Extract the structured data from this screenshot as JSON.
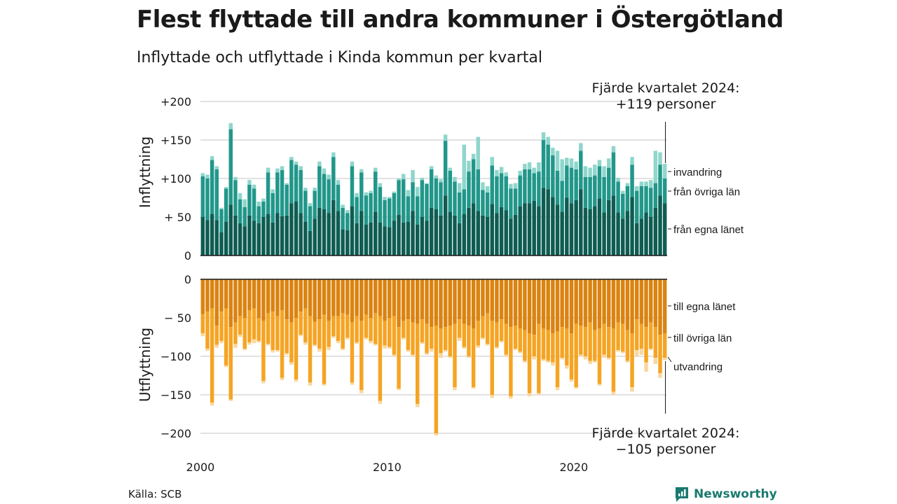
{
  "title": "Flest flyttade till andra kommuner i Östergötland",
  "subtitle": "Inflyttade och utflyttade i Kinda kommun per kvartal",
  "source": "Källa: SCB",
  "logo_text": "Newsworthy",
  "colors": {
    "in_egna": "#0e5c52",
    "in_ovriga": "#21978a",
    "in_invandring": "#8fd6cc",
    "ut_egna": "#db8310",
    "ut_ovriga": "#f5a423",
    "ut_utvandring": "#f9d7a0",
    "logo": "#1a7a70"
  },
  "chart_data": {
    "type": "bar",
    "stacked": true,
    "x_tick_labels": [
      "2000",
      "2010",
      "2020"
    ],
    "x_range": [
      "2000 Q1",
      "2024 Q4"
    ],
    "grid": true,
    "top_panel": {
      "ylabel": "Inflyttning",
      "y_tick_labels": [
        "0",
        "+ 50",
        "+100",
        "+150",
        "+200"
      ],
      "ylim": [
        0,
        200
      ],
      "series_labels": [
        "från egna länet",
        "från övriga län",
        "invandring"
      ],
      "annotation_line1": "Fjärde kvartalet 2024:",
      "annotation_line2": "+119 personer",
      "egna": [
        50,
        46,
        54,
        46,
        30,
        44,
        66,
        52,
        42,
        38,
        52,
        45,
        42,
        50,
        54,
        43,
        55,
        51,
        52,
        68,
        70,
        55,
        44,
        32,
        48,
        62,
        60,
        55,
        72,
        58,
        34,
        33,
        64,
        42,
        58,
        40,
        43,
        57,
        43,
        38,
        37,
        45,
        53,
        43,
        44,
        58,
        40,
        50,
        45,
        62,
        60,
        52,
        78,
        57,
        52,
        42,
        54,
        62,
        68,
        58,
        52,
        50,
        67,
        55,
        63,
        59,
        48,
        53,
        64,
        68,
        68,
        71,
        64,
        88,
        86,
        76,
        66,
        57,
        75,
        68,
        72,
        86,
        62,
        60,
        64,
        74,
        56,
        72,
        78,
        56,
        48,
        58,
        76,
        42,
        48,
        56,
        50,
        62,
        78,
        68
      ],
      "ovriga": [
        53,
        54,
        70,
        66,
        30,
        43,
        98,
        46,
        31,
        25,
        40,
        42,
        22,
        20,
        54,
        38,
        53,
        60,
        40,
        56,
        48,
        56,
        40,
        32,
        36,
        54,
        46,
        44,
        56,
        34,
        28,
        22,
        52,
        34,
        50,
        38,
        38,
        52,
        46,
        34,
        37,
        36,
        45,
        56,
        33,
        37,
        37,
        48,
        48,
        50,
        40,
        43,
        71,
        53,
        44,
        40,
        32,
        47,
        57,
        54,
        33,
        32,
        50,
        48,
        44,
        44,
        39,
        34,
        40,
        44,
        44,
        36,
        45,
        62,
        58,
        54,
        44,
        40,
        42,
        46,
        40,
        50,
        40,
        42,
        40,
        42,
        46,
        42,
        56,
        40,
        32,
        32,
        42,
        42,
        42,
        34,
        38,
        32,
        40,
        32
      ],
      "invandring": [
        4,
        5,
        5,
        4,
        2,
        2,
        8,
        4,
        8,
        10,
        6,
        5,
        6,
        4,
        6,
        5,
        5,
        5,
        2,
        4,
        4,
        5,
        4,
        4,
        4,
        6,
        7,
        6,
        6,
        6,
        4,
        4,
        6,
        5,
        4,
        4,
        3,
        5,
        5,
        4,
        2,
        2,
        2,
        7,
        8,
        16,
        12,
        3,
        1,
        4,
        4,
        4,
        8,
        4,
        6,
        12,
        58,
        14,
        7,
        42,
        10,
        8,
        11,
        8,
        8,
        5,
        6,
        7,
        6,
        7,
        9,
        7,
        12,
        10,
        10,
        10,
        26,
        28,
        10,
        12,
        10,
        10,
        14,
        12,
        14,
        8,
        14,
        12,
        8,
        5,
        4,
        4,
        10,
        6,
        6,
        6,
        10,
        42,
        16,
        19
      ]
    },
    "bottom_panel": {
      "ylabel": "Utflyttning",
      "y_tick_labels": [
        "0",
        "− 50",
        "−100",
        "−150",
        "−200"
      ],
      "ylim": [
        -200,
        0
      ],
      "series_labels": [
        "till egna länet",
        "till övriga län",
        "utvandring"
      ],
      "annotation_line1": "Fjärde kvartalet 2024:",
      "annotation_line2": "−105 personer",
      "egna": [
        45,
        42,
        38,
        60,
        42,
        38,
        62,
        56,
        48,
        50,
        40,
        38,
        50,
        54,
        44,
        42,
        48,
        40,
        52,
        56,
        50,
        42,
        38,
        48,
        55,
        52,
        46,
        54,
        48,
        48,
        44,
        46,
        56,
        48,
        54,
        46,
        50,
        44,
        48,
        54,
        50,
        48,
        62,
        54,
        52,
        56,
        58,
        52,
        58,
        62,
        60,
        64,
        62,
        60,
        58,
        52,
        58,
        60,
        64,
        54,
        48,
        44,
        54,
        56,
        52,
        58,
        62,
        60,
        64,
        66,
        70,
        72,
        58,
        64,
        66,
        70,
        68,
        62,
        64,
        70,
        58,
        60,
        62,
        56,
        66,
        64,
        58,
        62,
        64,
        56,
        58,
        66,
        70,
        52,
        58,
        62,
        56,
        62,
        72,
        70
      ],
      "ovriga": [
        25,
        48,
        122,
        25,
        38,
        74,
        94,
        28,
        24,
        40,
        42,
        40,
        30,
        78,
        40,
        50,
        44,
        88,
        44,
        52,
        80,
        30,
        44,
        86,
        30,
        38,
        90,
        34,
        26,
        32,
        46,
        30,
        78,
        34,
        90,
        30,
        30,
        40,
        110,
        32,
        38,
        50,
        80,
        22,
        40,
        42,
        104,
        30,
        38,
        28,
        140,
        32,
        30,
        40,
        82,
        24,
        30,
        40,
        76,
        32,
        28,
        40,
        96,
        32,
        28,
        40,
        90,
        30,
        30,
        40,
        78,
        28,
        90,
        40,
        40,
        38,
        72,
        40,
        48,
        60,
        82,
        38,
        38,
        50,
        40,
        72,
        40,
        40,
        82,
        36,
        36,
        40,
        70,
        40,
        32,
        46,
        34,
        40,
        50,
        32
      ],
      "utvandring": [
        4,
        3,
        4,
        4,
        3,
        2,
        2,
        5,
        3,
        2,
        3,
        5,
        2,
        3,
        2,
        3,
        2,
        3,
        2,
        3,
        3,
        2,
        3,
        4,
        2,
        4,
        2,
        4,
        2,
        3,
        2,
        2,
        3,
        2,
        4,
        2,
        3,
        2,
        4,
        4,
        2,
        2,
        2,
        2,
        2,
        2,
        4,
        2,
        2,
        4,
        3,
        6,
        2,
        2,
        4,
        4,
        2,
        2,
        2,
        3,
        2,
        2,
        4,
        2,
        2,
        2,
        3,
        2,
        2,
        2,
        4,
        4,
        2,
        2,
        2,
        4,
        4,
        2,
        4,
        3,
        2,
        2,
        4,
        4,
        2,
        2,
        4,
        2,
        4,
        2,
        2,
        2,
        6,
        8,
        8,
        12,
        2,
        8,
        6,
        3
      ]
    }
  }
}
